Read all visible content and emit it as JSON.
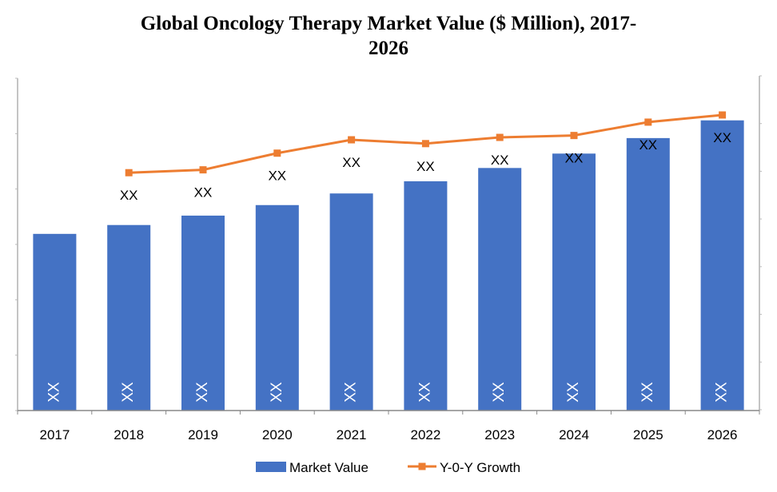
{
  "chart_data": {
    "type": "bar+line",
    "title_line1": "Global Oncology Therapy Market Value ($ Million), 2017-",
    "title_line2": "2026",
    "categories": [
      "2017",
      "2018",
      "2019",
      "2020",
      "2021",
      "2022",
      "2023",
      "2024",
      "2025",
      "2026"
    ],
    "series": [
      {
        "name": "Market Value",
        "type": "bar",
        "axis": "left",
        "color": "#4472C4",
        "values": [
          3.19,
          3.35,
          3.52,
          3.71,
          3.92,
          4.14,
          4.38,
          4.64,
          4.92,
          5.24
        ],
        "data_labels": [
          "XX",
          "XX",
          "XX",
          "XX",
          "XX",
          "XX",
          "XX",
          "XX",
          "XX",
          "XX"
        ]
      },
      {
        "name": "Y-0-Y Growth",
        "type": "line",
        "axis": "right",
        "color": "#ED7D31",
        "values": [
          null,
          4.97,
          5.03,
          5.38,
          5.66,
          5.58,
          5.71,
          5.75,
          6.03,
          6.18
        ],
        "data_labels": [
          "",
          "XX",
          "XX",
          "XX",
          "XX",
          "XX",
          "XX",
          "XX",
          "XX",
          "XX"
        ]
      }
    ],
    "left_axis": {
      "ylim": [
        0,
        6
      ],
      "ticks": 7,
      "tick_labels_legible": false
    },
    "right_axis": {
      "ylim": [
        0,
        7
      ],
      "ticks": 8,
      "tick_labels_legible": false
    },
    "grid": false,
    "legend": "bottom"
  }
}
